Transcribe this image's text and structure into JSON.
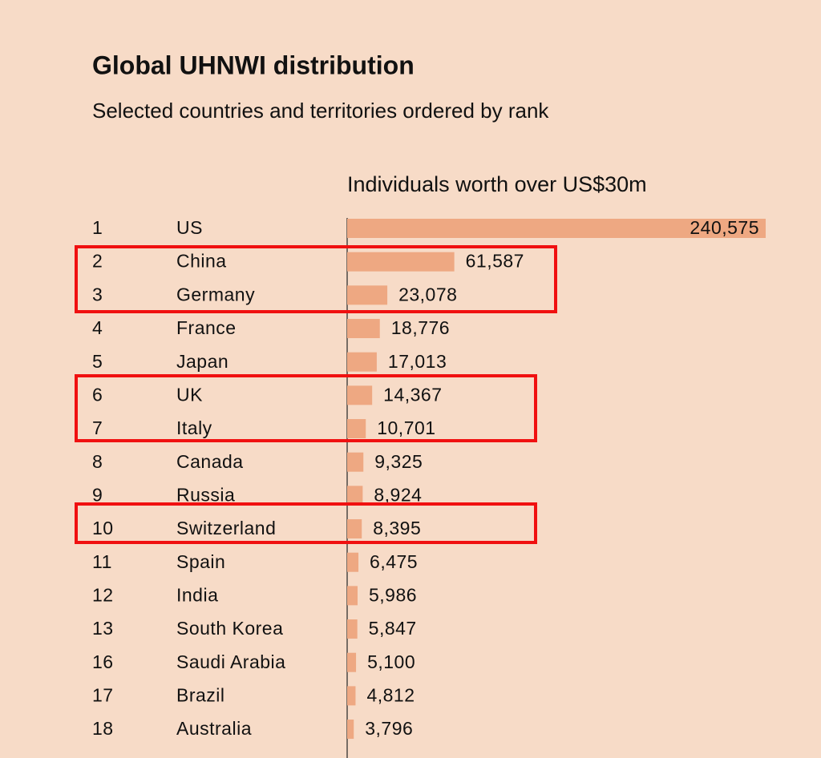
{
  "chart_data": {
    "type": "bar",
    "orientation": "horizontal",
    "title": "Global UHNWI distribution",
    "subtitle": "Selected countries and territories ordered by rank",
    "value_axis_title": "Individuals worth over US$30m",
    "ranks": [
      1,
      2,
      3,
      4,
      5,
      6,
      7,
      8,
      9,
      10,
      11,
      12,
      13,
      16,
      17,
      18
    ],
    "categories": [
      "US",
      "China",
      "Germany",
      "France",
      "Japan",
      "UK",
      "Italy",
      "Canada",
      "Russia",
      "Switzerland",
      "Spain",
      "India",
      "South Korea",
      "Saudi Arabia",
      "Brazil",
      "Australia"
    ],
    "values": [
      240575,
      61587,
      23078,
      18776,
      17013,
      14367,
      10701,
      9325,
      8924,
      8395,
      6475,
      5986,
      5847,
      5100,
      4812,
      3796
    ],
    "value_labels": [
      "240,575",
      "61,587",
      "23,078",
      "18,776",
      "17,013",
      "14,367",
      "10,701",
      "9,325",
      "8,924",
      "8,395",
      "6,475",
      "5,986",
      "5,847",
      "5,100",
      "4,812",
      "3,796"
    ],
    "color": "#eea882"
  }
}
